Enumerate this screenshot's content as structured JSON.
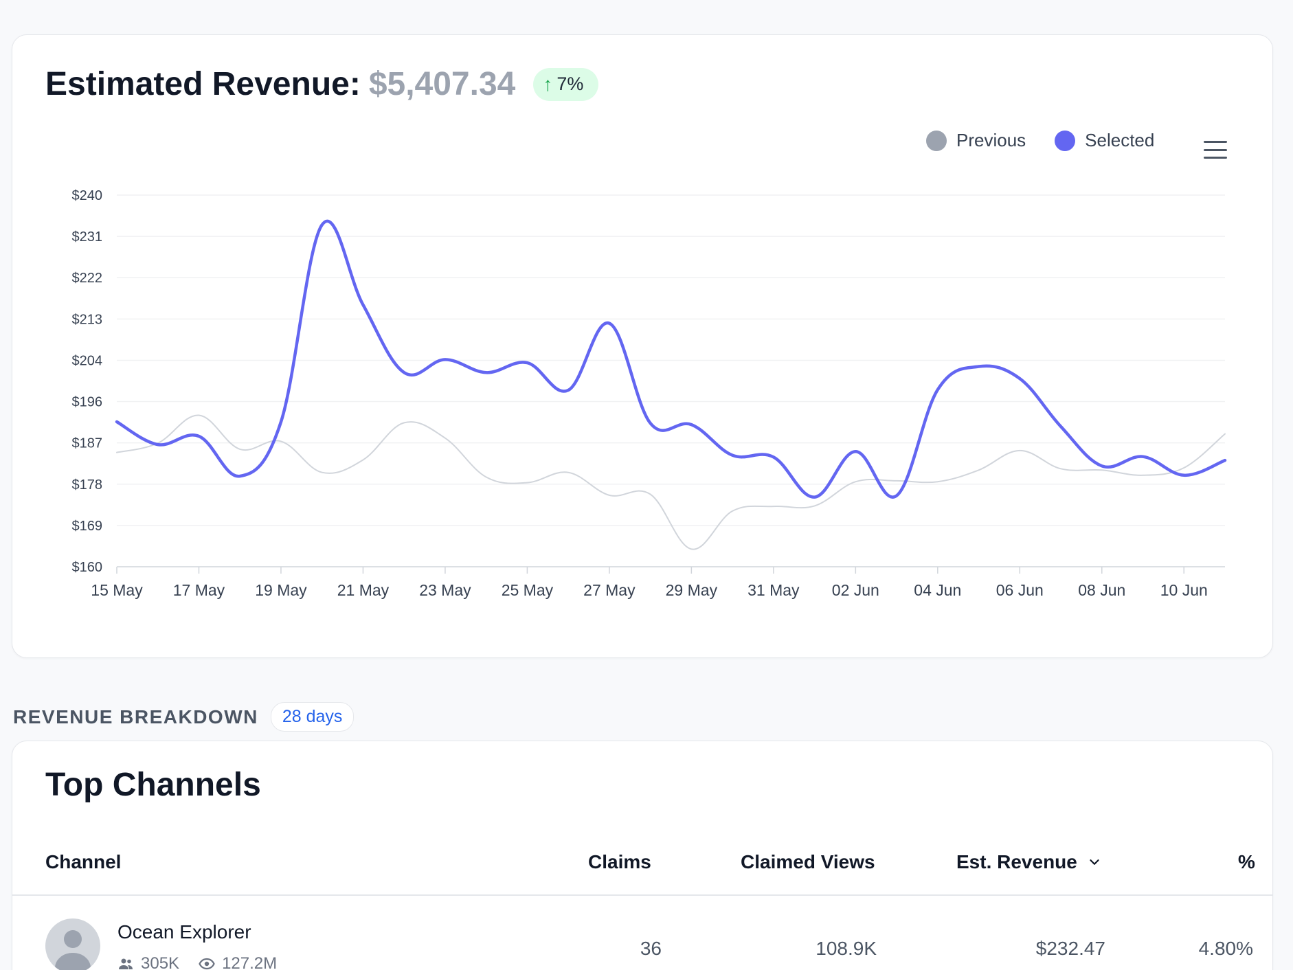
{
  "revenue": {
    "title": "Estimated Revenue:",
    "amount": "$5,407.34",
    "change": "7%",
    "menu_icon": "hamburger-menu-icon"
  },
  "legend": [
    {
      "label": "Previous",
      "color": "#9ca3af"
    },
    {
      "label": "Selected",
      "color": "#6366f1"
    }
  ],
  "chart_data": {
    "type": "line",
    "title": "",
    "xlabel": "",
    "ylabel": "",
    "ylim": [
      160,
      240
    ],
    "y_ticks": [
      "$160",
      "$169",
      "$178",
      "$187",
      "$196",
      "$204",
      "$213",
      "$222",
      "$231",
      "$240"
    ],
    "x_tick_labels": [
      "15 May",
      "17 May",
      "19 May",
      "21 May",
      "23 May",
      "25 May",
      "27 May",
      "29 May",
      "31 May",
      "02 Jun",
      "04 Jun",
      "06 Jun",
      "08 Jun",
      "10 Jun"
    ],
    "x": [
      "15 May",
      "16 May",
      "17 May",
      "18 May",
      "19 May",
      "20 May",
      "21 May",
      "22 May",
      "23 May",
      "24 May",
      "25 May",
      "26 May",
      "27 May",
      "28 May",
      "29 May",
      "30 May",
      "31 May",
      "01 Jun",
      "02 Jun",
      "03 Jun",
      "04 Jun",
      "05 Jun",
      "06 Jun",
      "07 Jun",
      "08 Jun",
      "09 Jun",
      "10 Jun",
      "11 Jun"
    ],
    "grid": true,
    "series": [
      {
        "name": "Previous",
        "color": "#d1d5db",
        "values": [
          184.6,
          186.6,
          192.6,
          185.3,
          187.0,
          180.3,
          183.0,
          191.0,
          187.7,
          179.3,
          178.1,
          180.3,
          175.4,
          175.6,
          163.8,
          172.0,
          173.0,
          173.1,
          178.3,
          178.5,
          178.3,
          180.8,
          185.0,
          181.1,
          180.8,
          179.7,
          181.3,
          188.6
        ]
      },
      {
        "name": "Selected",
        "color": "#6366f1",
        "values": [
          191.2,
          186.3,
          188.1,
          179.5,
          191.2,
          233.6,
          216.4,
          201.8,
          204.6,
          201.8,
          203.9,
          198.0,
          212.4,
          190.9,
          190.6,
          184.0,
          183.6,
          175.0,
          184.8,
          175.3,
          198.1,
          203.1,
          200.5,
          190.2,
          181.7,
          183.7,
          179.7,
          182.9
        ]
      }
    ]
  },
  "breakdown": {
    "label": "REVENUE BREAKDOWN",
    "period": "28 days"
  },
  "top_channels": {
    "title": "Top Channels",
    "columns": {
      "channel": "Channel",
      "claims": "Claims",
      "views": "Claimed Views",
      "revenue": "Est. Revenue",
      "percent": "%"
    },
    "rows": [
      {
        "name": "Ocean Explorer",
        "subscribers": "305K",
        "views_total": "127.2M",
        "claims": "36",
        "claimed_views": "108.9K",
        "revenue": "$232.47",
        "percent": "4.80%"
      }
    ]
  }
}
